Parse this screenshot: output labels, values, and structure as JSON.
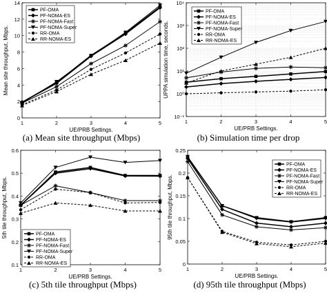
{
  "legend_labels": [
    "PF-OMA",
    "PF-NOMA-ES",
    "PF-NOMA-Fast",
    "PF-NOMA-Super",
    "RR-OMA",
    "RR-NOMA-ES"
  ],
  "chart_data": [
    {
      "type": "line",
      "caption": "(a)  Mean site throughput (Mbps)",
      "xlabel": "UE/PRB Settings.",
      "ylabel": "Mean site throughput, Mbps.",
      "x": [
        1,
        2,
        3,
        4,
        5
      ],
      "xlim": [
        1,
        5
      ],
      "ylim": [
        0,
        14
      ],
      "yticks": [
        0,
        2,
        4,
        6,
        8,
        10,
        12,
        14
      ],
      "yscale": "linear",
      "grid": false,
      "legend_position": "top-left",
      "series": [
        {
          "name": "PF-OMA",
          "values": [
            1.9,
            4.3,
            7.6,
            10.3,
            13.5
          ]
        },
        {
          "name": "PF-NOMA-ES",
          "values": [
            1.9,
            4.2,
            7.5,
            10.2,
            13.4
          ]
        },
        {
          "name": "PF-NOMA-Fast",
          "values": [
            1.8,
            3.8,
            6.6,
            8.8,
            11.7
          ]
        },
        {
          "name": "PF-NOMA-Super",
          "values": [
            1.8,
            4.4,
            7.5,
            10.4,
            13.7
          ]
        },
        {
          "name": "RR-OMA",
          "values": [
            1.6,
            3.4,
            5.9,
            7.9,
            10.2
          ]
        },
        {
          "name": "RR-NOMA-ES",
          "values": [
            1.5,
            3.2,
            5.3,
            7.0,
            9.1
          ]
        }
      ]
    },
    {
      "type": "line",
      "caption": "(b)  Simulation time per drop",
      "xlabel": "UE/PRB Settings.",
      "ylabel": "UPPA simulation time, seconds.",
      "x": [
        1,
        2,
        3,
        4,
        5
      ],
      "xlim": [
        1,
        5
      ],
      "ylim": [
        0.1,
        10000
      ],
      "ytick_values": [
        0.1,
        1,
        10,
        100,
        1000,
        10000
      ],
      "ytick_labels": [
        "10^-1",
        "10^0",
        "10^1",
        "10^2",
        "10^3",
        "10^4"
      ],
      "yscale": "log",
      "grid": true,
      "legend_position": "top-left",
      "series": [
        {
          "name": "PF-OMA",
          "values": [
            3.2,
            4.6,
            5.8,
            7.4,
            9.5
          ]
        },
        {
          "name": "PF-NOMA-ES",
          "values": [
            2.0,
            2.8,
            3.5,
            4.3,
            5.2
          ]
        },
        {
          "name": "PF-NOMA-Fast",
          "values": [
            5.0,
            9.0,
            13.0,
            15.0,
            14.0
          ]
        },
        {
          "name": "PF-NOMA-Super",
          "values": [
            8.0,
            40.0,
            180.0,
            600.0,
            1500.0
          ]
        },
        {
          "name": "RR-OMA",
          "values": [
            1.0,
            1.1,
            1.2,
            1.3,
            1.5
          ]
        },
        {
          "name": "RR-NOMA-ES",
          "values": [
            3.0,
            10.0,
            20.0,
            40.0,
            100.0
          ]
        }
      ]
    },
    {
      "type": "line",
      "caption": "(c)  5th tile throughput (Mbps)",
      "xlabel": "UE/PRB Settings.",
      "ylabel": "5th tile throughput, Mbps.",
      "x": [
        1,
        2,
        3,
        4,
        5
      ],
      "xlim": [
        1,
        5
      ],
      "ylim": [
        0.1,
        0.6
      ],
      "yticks": [
        0.1,
        0.2,
        0.3,
        0.4,
        0.5,
        0.6
      ],
      "yscale": "linear",
      "grid": false,
      "legend_position": "bottom-left",
      "series": [
        {
          "name": "PF-OMA",
          "values": [
            0.36,
            0.505,
            0.525,
            0.49,
            0.49
          ]
        },
        {
          "name": "PF-NOMA-ES",
          "values": [
            0.36,
            0.5,
            0.52,
            0.488,
            0.487
          ]
        },
        {
          "name": "PF-NOMA-Fast",
          "values": [
            0.36,
            0.445,
            0.415,
            0.38,
            0.38
          ]
        },
        {
          "name": "PF-NOMA-Super",
          "values": [
            0.37,
            0.525,
            0.57,
            0.547,
            0.555
          ]
        },
        {
          "name": "RR-OMA",
          "values": [
            0.34,
            0.43,
            0.415,
            0.37,
            0.372
          ]
        },
        {
          "name": "RR-NOMA-ES",
          "values": [
            0.325,
            0.37,
            0.36,
            0.335,
            0.335
          ]
        }
      ]
    },
    {
      "type": "line",
      "caption": "(d)  95th tile throughput (Mbps)",
      "xlabel": "UE/PRB Settings.",
      "ylabel": "95th tile throughput, Mbps.",
      "x": [
        1,
        2,
        3,
        4,
        5
      ],
      "xlim": [
        1,
        5
      ],
      "ylim": [
        0,
        0.25
      ],
      "yticks": [
        0,
        0.05,
        0.1,
        0.15,
        0.2,
        0.25
      ],
      "yscale": "linear",
      "grid": false,
      "legend_position": "top-right",
      "series": [
        {
          "name": "PF-OMA",
          "values": [
            0.235,
            0.128,
            0.102,
            0.093,
            0.102
          ]
        },
        {
          "name": "PF-NOMA-ES",
          "values": [
            0.232,
            0.12,
            0.09,
            0.082,
            0.09
          ]
        },
        {
          "name": "PF-NOMA-Fast",
          "values": [
            0.225,
            0.108,
            0.082,
            0.075,
            0.08
          ]
        },
        {
          "name": "PF-NOMA-Super",
          "values": [
            0.236,
            0.128,
            0.1,
            0.092,
            0.1
          ]
        },
        {
          "name": "RR-OMA",
          "values": [
            0.19,
            0.072,
            0.048,
            0.042,
            0.05
          ]
        },
        {
          "name": "RR-NOMA-ES",
          "values": [
            0.19,
            0.07,
            0.045,
            0.038,
            0.046
          ]
        }
      ]
    }
  ]
}
